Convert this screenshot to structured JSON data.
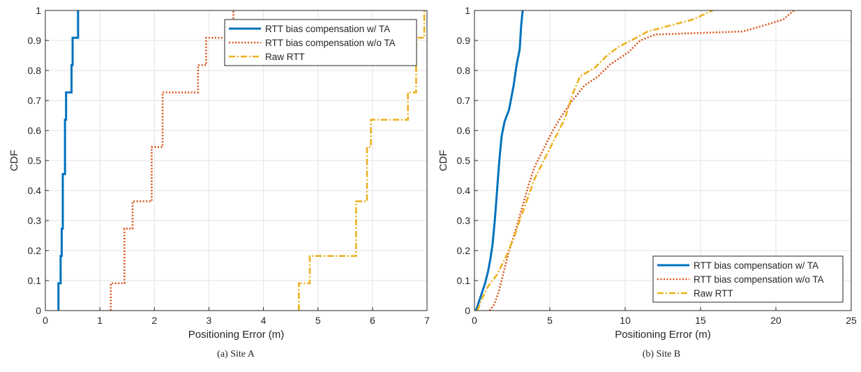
{
  "chart_data": [
    {
      "type": "line",
      "caption": "(a) Site A",
      "xlabel": "Positioning Error (m)",
      "ylabel": "CDF",
      "xlim": [
        0,
        7
      ],
      "ylim": [
        0,
        1
      ],
      "xticks": [
        "0",
        "1",
        "2",
        "3",
        "4",
        "5",
        "6",
        "7"
      ],
      "yticks": [
        "0",
        "0.1",
        "0.2",
        "0.3",
        "0.4",
        "0.5",
        "0.6",
        "0.7",
        "0.8",
        "0.9",
        "1"
      ],
      "grid": true,
      "legend_position": "top-right",
      "series": [
        {
          "name": "RTT bias compensation w/ TA",
          "color": "#0072BD",
          "style": "solid",
          "points": [
            [
              0.24,
              0
            ],
            [
              0.24,
              0.091
            ],
            [
              0.28,
              0.091
            ],
            [
              0.28,
              0.182
            ],
            [
              0.3,
              0.182
            ],
            [
              0.3,
              0.273
            ],
            [
              0.32,
              0.273
            ],
            [
              0.32,
              0.455
            ],
            [
              0.36,
              0.455
            ],
            [
              0.36,
              0.636
            ],
            [
              0.38,
              0.636
            ],
            [
              0.38,
              0.727
            ],
            [
              0.48,
              0.727
            ],
            [
              0.48,
              0.818
            ],
            [
              0.5,
              0.818
            ],
            [
              0.5,
              0.909
            ],
            [
              0.6,
              0.909
            ],
            [
              0.6,
              1
            ]
          ]
        },
        {
          "name": "RTT bias compensation w/o TA",
          "color": "#D95319",
          "style": "dotted",
          "points": [
            [
              1.2,
              0
            ],
            [
              1.2,
              0.091
            ],
            [
              1.45,
              0.091
            ],
            [
              1.45,
              0.273
            ],
            [
              1.6,
              0.273
            ],
            [
              1.6,
              0.364
            ],
            [
              1.95,
              0.364
            ],
            [
              1.95,
              0.545
            ],
            [
              2.15,
              0.545
            ],
            [
              2.15,
              0.727
            ],
            [
              2.8,
              0.727
            ],
            [
              2.8,
              0.818
            ],
            [
              2.95,
              0.818
            ],
            [
              2.95,
              0.909
            ],
            [
              3.45,
              0.909
            ],
            [
              3.45,
              1
            ]
          ]
        },
        {
          "name": "Raw RTT",
          "color": "#EDB120",
          "style": "dashdot",
          "points": [
            [
              4.65,
              0
            ],
            [
              4.65,
              0.091
            ],
            [
              4.85,
              0.091
            ],
            [
              4.85,
              0.182
            ],
            [
              5.7,
              0.182
            ],
            [
              5.7,
              0.364
            ],
            [
              5.9,
              0.364
            ],
            [
              5.9,
              0.545
            ],
            [
              5.97,
              0.545
            ],
            [
              5.97,
              0.636
            ],
            [
              6.65,
              0.636
            ],
            [
              6.65,
              0.727
            ],
            [
              6.8,
              0.727
            ],
            [
              6.8,
              0.909
            ],
            [
              6.95,
              0.909
            ],
            [
              6.95,
              1
            ]
          ]
        }
      ]
    },
    {
      "type": "line",
      "caption": "(b) Site B",
      "xlabel": "Positioning Error (m)",
      "ylabel": "CDF",
      "xlim": [
        0,
        25
      ],
      "ylim": [
        0,
        1
      ],
      "xticks": [
        "0",
        "5",
        "10",
        "15",
        "20",
        "25"
      ],
      "yticks": [
        "0",
        "0.1",
        "0.2",
        "0.3",
        "0.4",
        "0.5",
        "0.6",
        "0.7",
        "0.8",
        "0.9",
        "1"
      ],
      "grid": true,
      "legend_position": "bottom-right",
      "series": [
        {
          "name": "RTT bias compensation w/ TA",
          "color": "#0072BD",
          "style": "solid",
          "points": [
            [
              0.1,
              0
            ],
            [
              0.3,
              0.03
            ],
            [
              0.5,
              0.06
            ],
            [
              0.7,
              0.09
            ],
            [
              0.9,
              0.13
            ],
            [
              1.05,
              0.17
            ],
            [
              1.2,
              0.22
            ],
            [
              1.35,
              0.3
            ],
            [
              1.5,
              0.4
            ],
            [
              1.65,
              0.5
            ],
            [
              1.8,
              0.58
            ],
            [
              2.0,
              0.63
            ],
            [
              2.3,
              0.67
            ],
            [
              2.6,
              0.75
            ],
            [
              2.8,
              0.82
            ],
            [
              3.0,
              0.87
            ],
            [
              3.1,
              0.95
            ],
            [
              3.2,
              1.0
            ]
          ]
        },
        {
          "name": "RTT bias compensation w/o TA",
          "color": "#D95319",
          "style": "dotted",
          "points": [
            [
              1.0,
              0
            ],
            [
              1.3,
              0.02
            ],
            [
              1.6,
              0.06
            ],
            [
              1.9,
              0.12
            ],
            [
              2.3,
              0.2
            ],
            [
              2.8,
              0.28
            ],
            [
              3.2,
              0.35
            ],
            [
              3.6,
              0.42
            ],
            [
              4.0,
              0.48
            ],
            [
              4.6,
              0.54
            ],
            [
              5.2,
              0.6
            ],
            [
              5.8,
              0.65
            ],
            [
              6.5,
              0.7
            ],
            [
              7.3,
              0.75
            ],
            [
              8.2,
              0.78
            ],
            [
              9.0,
              0.82
            ],
            [
              10.2,
              0.86
            ],
            [
              11.0,
              0.9
            ],
            [
              12.0,
              0.92
            ],
            [
              17.8,
              0.93
            ],
            [
              19.2,
              0.95
            ],
            [
              20.5,
              0.97
            ],
            [
              21.2,
              1.0
            ]
          ]
        },
        {
          "name": "Raw RTT",
          "color": "#EDB120",
          "style": "dashdot",
          "points": [
            [
              0.2,
              0
            ],
            [
              0.5,
              0.04
            ],
            [
              0.9,
              0.08
            ],
            [
              1.5,
              0.12
            ],
            [
              2.1,
              0.18
            ],
            [
              2.6,
              0.24
            ],
            [
              3.0,
              0.3
            ],
            [
              3.5,
              0.37
            ],
            [
              4.0,
              0.44
            ],
            [
              4.6,
              0.5
            ],
            [
              5.4,
              0.58
            ],
            [
              6.0,
              0.64
            ],
            [
              6.5,
              0.72
            ],
            [
              7.0,
              0.78
            ],
            [
              8.0,
              0.81
            ],
            [
              8.8,
              0.85
            ],
            [
              9.6,
              0.88
            ],
            [
              10.4,
              0.9
            ],
            [
              11.5,
              0.93
            ],
            [
              13.0,
              0.95
            ],
            [
              14.5,
              0.97
            ],
            [
              15.8,
              1.0
            ]
          ]
        }
      ]
    }
  ]
}
